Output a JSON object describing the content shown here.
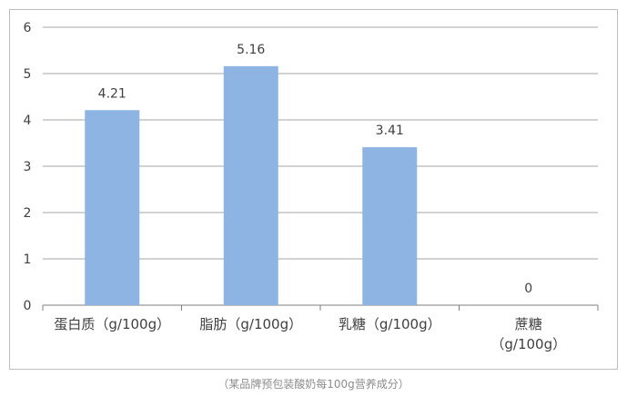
{
  "chart_data": {
    "type": "bar",
    "categories": [
      [
        "蛋白质（g/100g）"
      ],
      [
        "脂肪（g/100g）"
      ],
      [
        "乳糖（g/100g）"
      ],
      [
        "蔗糖",
        "（g/100g）"
      ]
    ],
    "values": [
      4.21,
      5.16,
      3.41,
      0
    ],
    "data_labels": [
      "4.21",
      "5.16",
      "3.41",
      "0"
    ],
    "yticks": [
      "0",
      "1",
      "2",
      "3",
      "4",
      "5",
      "6"
    ],
    "ylim": [
      0,
      6
    ],
    "grid": true,
    "bar_color": "#8db4e2",
    "grid_color": "#a6a6a6"
  },
  "caption": "（某品牌预包装酸奶每100g营养成分）"
}
